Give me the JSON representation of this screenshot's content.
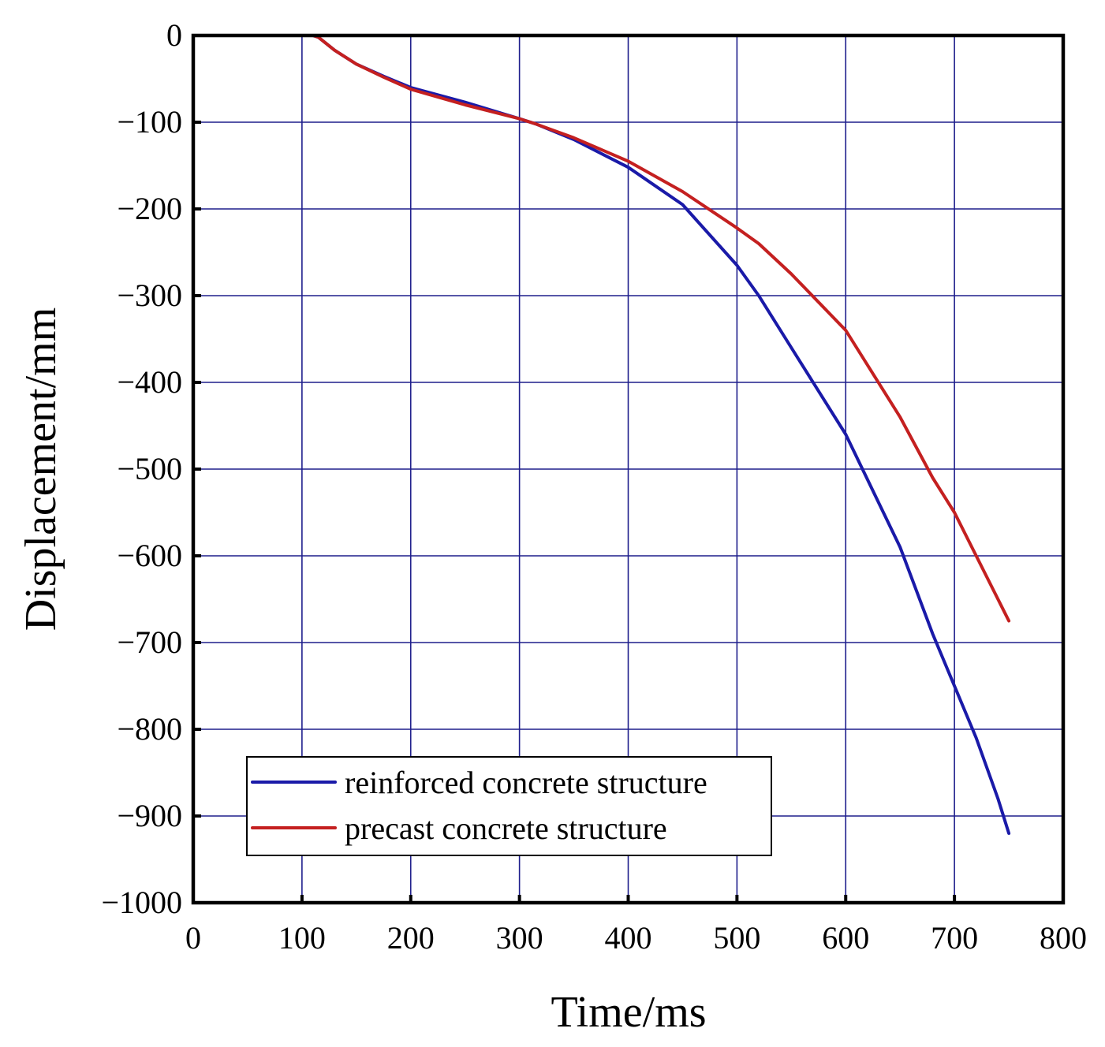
{
  "chart_data": {
    "type": "line",
    "title": "",
    "xlabel": "Time/ms",
    "ylabel": "Displacement/mm",
    "xlim": [
      0,
      800
    ],
    "ylim": [
      -1000,
      0
    ],
    "grid": true,
    "legend_position": "bottom-left",
    "x_ticks": [
      {
        "value": 0,
        "label": "0"
      },
      {
        "value": 100,
        "label": "100"
      },
      {
        "value": 200,
        "label": "200"
      },
      {
        "value": 300,
        "label": "300"
      },
      {
        "value": 400,
        "label": "400"
      },
      {
        "value": 500,
        "label": "500"
      },
      {
        "value": 600,
        "label": "600"
      },
      {
        "value": 700,
        "label": "700"
      },
      {
        "value": 800,
        "label": "800"
      }
    ],
    "y_ticks": [
      {
        "value": 0,
        "label": "0"
      },
      {
        "value": -100,
        "label": "−100"
      },
      {
        "value": -200,
        "label": "−200"
      },
      {
        "value": -300,
        "label": "−300"
      },
      {
        "value": -400,
        "label": "−400"
      },
      {
        "value": -500,
        "label": "−500"
      },
      {
        "value": -600,
        "label": "−600"
      },
      {
        "value": -700,
        "label": "−700"
      },
      {
        "value": -800,
        "label": "−800"
      },
      {
        "value": -900,
        "label": "−900"
      },
      {
        "value": -1000,
        "label": "−1000"
      }
    ],
    "series": [
      {
        "name": "reinforced concrete structure",
        "color": "#1a1aa8",
        "x": [
          0,
          110,
          115,
          130,
          150,
          175,
          200,
          250,
          300,
          315,
          350,
          400,
          450,
          500,
          520,
          550,
          600,
          650,
          680,
          700,
          720,
          740,
          750
        ],
        "y": [
          0,
          0,
          -2,
          -17,
          -33,
          -47,
          -60,
          -77,
          -96,
          -102,
          -120,
          -152,
          -195,
          -265,
          -300,
          -360,
          -460,
          -590,
          -690,
          -750,
          -810,
          -880,
          -920
        ]
      },
      {
        "name": "precast concrete structure",
        "color": "#c42020",
        "x": [
          0,
          110,
          115,
          130,
          150,
          175,
          200,
          250,
          300,
          315,
          350,
          400,
          450,
          500,
          520,
          550,
          600,
          650,
          680,
          700,
          720,
          740,
          750
        ],
        "y": [
          0,
          0,
          -2,
          -17,
          -33,
          -48,
          -62,
          -80,
          -96,
          -102,
          -118,
          -145,
          -180,
          -222,
          -240,
          -275,
          -340,
          -440,
          -510,
          -550,
          -600,
          -650,
          -675
        ]
      }
    ]
  }
}
